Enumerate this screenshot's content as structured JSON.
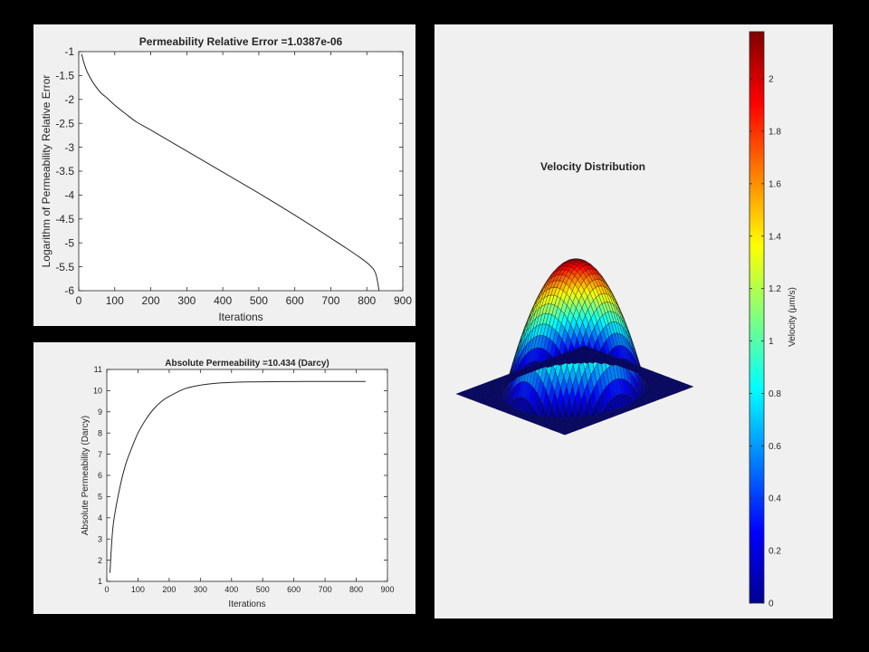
{
  "chart_data": [
    {
      "type": "line",
      "title": "Permeability Relative Error =1.0387e-06",
      "xlabel": "Iterations",
      "ylabel": "Logarithm of Permeability Relative Error",
      "xlim": [
        0,
        900
      ],
      "ylim": [
        -6,
        -1
      ],
      "xticks": [
        0,
        100,
        200,
        300,
        400,
        500,
        600,
        700,
        800,
        900
      ],
      "yticks": [
        -1,
        -1.5,
        -2,
        -2.5,
        -3,
        -3.5,
        -4,
        -4.5,
        -5,
        -5.5,
        -6
      ],
      "x": [
        8,
        15,
        25,
        40,
        60,
        80,
        100,
        130,
        160,
        200,
        300,
        400,
        500,
        600,
        700,
        780,
        810,
        825,
        834
      ],
      "y": [
        -1.05,
        -1.25,
        -1.45,
        -1.65,
        -1.85,
        -1.98,
        -2.12,
        -2.3,
        -2.47,
        -2.64,
        -3.08,
        -3.52,
        -3.96,
        -4.42,
        -4.9,
        -5.3,
        -5.48,
        -5.65,
        -6.0
      ],
      "grid": false
    },
    {
      "type": "line",
      "title": "Absolute Permeability =10.434 (Darcy)",
      "xlabel": "Iterations",
      "ylabel": "Absolute Permeability (Darcy)",
      "xlim": [
        0,
        900
      ],
      "ylim": [
        1,
        11
      ],
      "xticks": [
        0,
        100,
        200,
        300,
        400,
        500,
        600,
        700,
        800,
        900
      ],
      "yticks": [
        1,
        2,
        3,
        4,
        5,
        6,
        7,
        8,
        9,
        10,
        11
      ],
      "x": [
        10,
        20,
        40,
        60,
        80,
        100,
        125,
        150,
        175,
        200,
        250,
        300,
        350,
        400,
        450,
        500,
        600,
        700,
        830
      ],
      "y": [
        1.4,
        3.6,
        5.3,
        6.5,
        7.3,
        8.0,
        8.64,
        9.13,
        9.49,
        9.73,
        10.09,
        10.26,
        10.35,
        10.39,
        10.41,
        10.42,
        10.43,
        10.434,
        10.434
      ],
      "grid": false
    },
    {
      "type": "surface",
      "title": "Velocity Distribution",
      "colorbar_label": "Velocity (μm/s)",
      "colorbar_ticks": [
        0,
        0.2,
        0.4,
        0.6,
        0.8,
        1,
        1.2,
        1.4,
        1.6,
        1.8,
        2
      ],
      "zlim": [
        0,
        2.18
      ],
      "peak_value": 2.18,
      "colormap": "jet"
    }
  ]
}
